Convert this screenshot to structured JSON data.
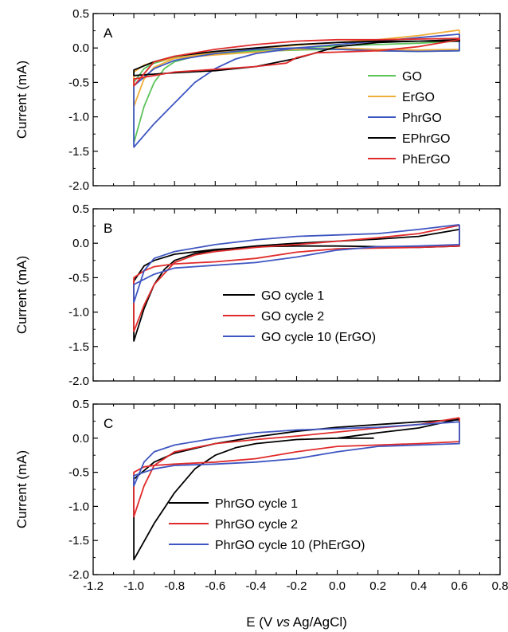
{
  "chart_data": [
    {
      "type": "line",
      "panel_label": "A",
      "ylabel": "Current (mA)",
      "xlim": [
        -1.2,
        0.8
      ],
      "ylim": [
        -2.0,
        0.5
      ],
      "yticks": [
        "0.5",
        "0.0",
        "-0.5",
        "-1.0",
        "-1.5",
        "-2.0"
      ],
      "legend_position": "right",
      "series": [
        {
          "name": "GO",
          "color": "#5cc35a",
          "x": [
            0.6,
            0.4,
            0.2,
            0.0,
            -0.2,
            -0.4,
            -0.6,
            -0.7,
            -0.8,
            -0.85,
            -0.9,
            -0.95,
            -1.0,
            -1.0,
            -0.95,
            -0.9,
            -0.8,
            -0.6,
            -0.4,
            -0.2,
            0.0,
            0.2,
            0.4,
            0.6,
            0.6
          ],
          "y": [
            0.1,
            0.07,
            0.05,
            0.03,
            0.0,
            -0.03,
            -0.08,
            -0.12,
            -0.2,
            -0.3,
            -0.5,
            -0.85,
            -1.38,
            -0.5,
            -0.3,
            -0.22,
            -0.14,
            -0.08,
            -0.05,
            -0.03,
            -0.02,
            -0.04,
            -0.05,
            -0.04,
            0.1
          ]
        },
        {
          "name": "ErGO",
          "color": "#f0ae3a",
          "x": [
            0.6,
            0.4,
            0.2,
            0.0,
            -0.2,
            -0.4,
            -0.6,
            -0.8,
            -0.9,
            -0.95,
            -1.0,
            -1.0,
            -0.95,
            -0.9,
            -0.8,
            -0.6,
            -0.4,
            -0.2,
            0.0,
            0.2,
            0.4,
            0.6,
            0.6
          ],
          "y": [
            0.26,
            0.18,
            0.12,
            0.08,
            0.04,
            -0.01,
            -0.06,
            -0.15,
            -0.28,
            -0.45,
            -0.85,
            -0.35,
            -0.25,
            -0.2,
            -0.15,
            -0.1,
            -0.06,
            -0.02,
            0.0,
            -0.02,
            -0.03,
            -0.02,
            0.26
          ]
        },
        {
          "name": "PhrGO",
          "color": "#3f56c2",
          "x": [
            0.6,
            0.4,
            0.2,
            0.0,
            -0.2,
            -0.4,
            -0.5,
            -0.6,
            -0.7,
            -0.8,
            -0.9,
            -1.0,
            -1.0,
            -0.9,
            -0.8,
            -0.6,
            -0.4,
            -0.2,
            0.0,
            0.2,
            0.4,
            0.6,
            0.6
          ],
          "y": [
            0.2,
            0.15,
            0.1,
            0.05,
            0.0,
            -0.08,
            -0.16,
            -0.3,
            -0.5,
            -0.8,
            -1.1,
            -1.44,
            -0.55,
            -0.3,
            -0.18,
            -0.08,
            -0.02,
            0.0,
            -0.02,
            -0.04,
            -0.05,
            -0.04,
            0.2
          ]
        },
        {
          "name": "EPhrGO",
          "color": "#000000",
          "x": [
            0.6,
            0.4,
            0.2,
            0.0,
            -0.2,
            -0.4,
            -0.6,
            -0.8,
            -0.9,
            -1.0,
            -1.0,
            -0.9,
            -0.8,
            -0.6,
            -0.4,
            -0.2,
            0.0,
            0.2,
            0.4,
            0.6,
            0.6
          ],
          "y": [
            0.12,
            0.1,
            0.08,
            0.02,
            -0.15,
            -0.27,
            -0.33,
            -0.36,
            -0.38,
            -0.4,
            -0.32,
            -0.2,
            -0.12,
            -0.05,
            0.0,
            0.05,
            0.08,
            0.1,
            0.1,
            0.1,
            0.12
          ]
        },
        {
          "name": "PhErGO",
          "color": "#e02b2b",
          "x": [
            0.6,
            0.4,
            0.2,
            0.0,
            -0.1,
            -0.2,
            -0.25,
            -0.4,
            -0.6,
            -0.8,
            -0.9,
            -1.0,
            -1.0,
            -0.9,
            -0.8,
            -0.6,
            -0.4,
            -0.2,
            0.0,
            0.2,
            0.4,
            0.6,
            0.6
          ],
          "y": [
            0.12,
            0.02,
            -0.04,
            -0.06,
            -0.07,
            -0.14,
            -0.22,
            -0.27,
            -0.31,
            -0.35,
            -0.4,
            -0.45,
            -0.55,
            -0.2,
            -0.12,
            -0.02,
            0.05,
            0.1,
            0.12,
            0.12,
            0.13,
            0.14,
            0.12
          ]
        }
      ]
    },
    {
      "type": "line",
      "panel_label": "B",
      "ylabel": "Current (mA)",
      "xlim": [
        -1.2,
        0.8
      ],
      "ylim": [
        -2.0,
        0.5
      ],
      "yticks": [
        "0.5",
        "0.0",
        "-0.5",
        "-1.0",
        "-1.5",
        "-2.0"
      ],
      "legend_position": "center",
      "series": [
        {
          "name": "GO cycle 1",
          "color": "#000000",
          "x": [
            0.6,
            0.4,
            0.2,
            0.0,
            -0.2,
            -0.4,
            -0.6,
            -0.7,
            -0.8,
            -0.85,
            -0.9,
            -0.95,
            -1.0,
            -1.0,
            -0.95,
            -0.9,
            -0.8,
            -0.6,
            -0.4,
            -0.2,
            0.0,
            0.2,
            0.4,
            0.6,
            0.6
          ],
          "y": [
            0.2,
            0.1,
            0.06,
            0.03,
            0.0,
            -0.04,
            -0.1,
            -0.15,
            -0.25,
            -0.38,
            -0.6,
            -0.95,
            -1.42,
            -0.55,
            -0.33,
            -0.25,
            -0.16,
            -0.09,
            -0.05,
            -0.04,
            -0.04,
            -0.05,
            -0.06,
            -0.04,
            0.2
          ]
        },
        {
          "name": "GO cycle 2",
          "color": "#e02b2b",
          "x": [
            0.6,
            0.4,
            0.2,
            0.0,
            -0.2,
            -0.4,
            -0.6,
            -0.7,
            -0.8,
            -0.9,
            -0.95,
            -1.0,
            -1.0,
            -0.95,
            -0.9,
            -0.8,
            -0.6,
            -0.4,
            -0.2,
            0.0,
            0.2,
            0.4,
            0.6,
            0.6
          ],
          "y": [
            0.26,
            0.14,
            0.08,
            0.03,
            -0.02,
            -0.06,
            -0.12,
            -0.17,
            -0.28,
            -0.6,
            -0.9,
            -1.28,
            -0.5,
            -0.4,
            -0.34,
            -0.3,
            -0.27,
            -0.22,
            -0.13,
            -0.08,
            -0.07,
            -0.06,
            -0.04,
            0.26
          ]
        },
        {
          "name": "GO cycle 10 (ErGO)",
          "color": "#3f56c2",
          "x": [
            0.6,
            0.4,
            0.2,
            0.0,
            -0.2,
            -0.4,
            -0.6,
            -0.8,
            -0.9,
            -0.95,
            -1.0,
            -1.0,
            -0.9,
            -0.8,
            -0.6,
            -0.4,
            -0.2,
            0.0,
            0.2,
            0.4,
            0.6,
            0.6
          ],
          "y": [
            0.27,
            0.2,
            0.14,
            0.12,
            0.1,
            0.05,
            -0.02,
            -0.12,
            -0.22,
            -0.4,
            -0.86,
            -0.6,
            -0.45,
            -0.36,
            -0.32,
            -0.28,
            -0.2,
            -0.1,
            -0.05,
            -0.04,
            -0.02,
            0.27
          ]
        }
      ]
    },
    {
      "type": "line",
      "panel_label": "C",
      "ylabel": "Current (mA)",
      "xlabel": "E (V vs Ag/AgCl)",
      "xlim": [
        -1.2,
        0.8
      ],
      "ylim": [
        -2.0,
        0.5
      ],
      "xticks": [
        "-1.2",
        "-1.0",
        "-0.8",
        "-0.6",
        "-0.4",
        "-0.2",
        "0.0",
        "0.2",
        "0.4",
        "0.6",
        "0.8"
      ],
      "yticks": [
        "0.5",
        "0.0",
        "-0.5",
        "-1.0",
        "-1.5",
        "-2.0"
      ],
      "legend_position": "bottom",
      "series": [
        {
          "name": "PhrGO cycle 1",
          "color": "#000000",
          "x": [
            0.18,
            0.0,
            -0.2,
            -0.4,
            -0.5,
            -0.6,
            -0.7,
            -0.8,
            -0.9,
            -1.0,
            -1.0,
            -0.9,
            -0.8,
            -0.6,
            -0.4,
            -0.2,
            0.0,
            0.2,
            0.4,
            0.6,
            0.6,
            0.4,
            0.2,
            0.0
          ],
          "y": [
            0.0,
            0.0,
            -0.02,
            -0.08,
            -0.14,
            -0.25,
            -0.45,
            -0.8,
            -1.25,
            -1.78,
            -0.6,
            -0.35,
            -0.22,
            -0.08,
            0.02,
            0.1,
            0.16,
            0.2,
            0.24,
            0.27,
            0.28,
            0.15,
            0.08,
            0.0
          ]
        },
        {
          "name": "PhrGO cycle 2",
          "color": "#e02b2b",
          "x": [
            0.6,
            0.4,
            0.2,
            0.0,
            -0.2,
            -0.4,
            -0.6,
            -0.8,
            -0.9,
            -0.95,
            -1.0,
            -1.0,
            -0.95,
            -0.9,
            -0.8,
            -0.6,
            -0.4,
            -0.2,
            0.0,
            0.2,
            0.4,
            0.6,
            0.6
          ],
          "y": [
            0.3,
            0.2,
            0.15,
            0.09,
            0.03,
            -0.02,
            -0.08,
            -0.2,
            -0.4,
            -0.7,
            -1.15,
            -0.5,
            -0.42,
            -0.4,
            -0.38,
            -0.35,
            -0.3,
            -0.2,
            -0.12,
            -0.1,
            -0.08,
            -0.05,
            0.3
          ]
        },
        {
          "name": "PhrGO cycle 10 (PhErGO)",
          "color": "#3f56c2",
          "x": [
            0.6,
            0.4,
            0.2,
            0.0,
            -0.2,
            -0.4,
            -0.6,
            -0.8,
            -0.9,
            -0.95,
            -1.0,
            -1.0,
            -0.9,
            -0.8,
            -0.6,
            -0.4,
            -0.2,
            0.0,
            0.2,
            0.4,
            0.6,
            0.6
          ],
          "y": [
            0.24,
            0.2,
            0.16,
            0.14,
            0.12,
            0.08,
            0.0,
            -0.1,
            -0.2,
            -0.35,
            -0.7,
            -0.55,
            -0.45,
            -0.4,
            -0.38,
            -0.35,
            -0.3,
            -0.2,
            -0.12,
            -0.1,
            -0.08,
            0.24
          ]
        }
      ]
    }
  ]
}
